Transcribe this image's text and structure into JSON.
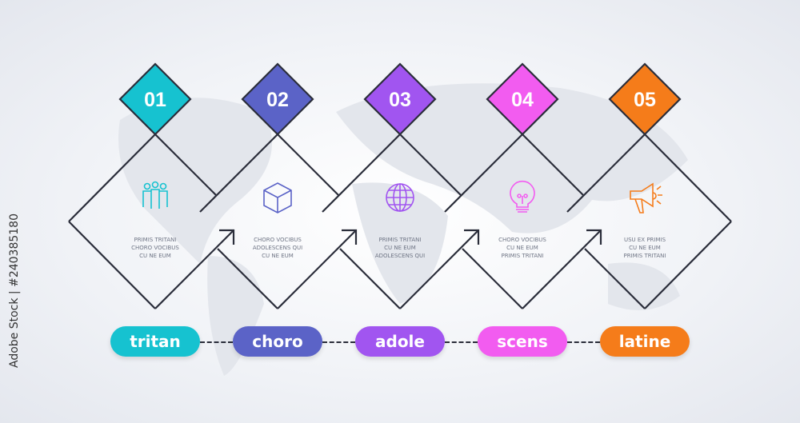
{
  "watermark": "Adobe Stock | #240385180",
  "outline_color": "#2a2d3a",
  "steps": [
    {
      "number": "01",
      "color": "#16c2d0",
      "icon": "people-group-icon",
      "lines": [
        "PRIMIS TRITANI",
        "CHORO VOCIBUS",
        "CU NE EUM"
      ],
      "label": "tritan"
    },
    {
      "number": "02",
      "color": "#5b63c7",
      "icon": "cube-icon",
      "lines": [
        "CHORO VOCIBUS",
        "ADOLESCENS QUI",
        "CU NE EUM"
      ],
      "label": "choro"
    },
    {
      "number": "03",
      "color": "#a155f0",
      "icon": "globe-icon",
      "lines": [
        "PRIMIS TRITANI",
        "CU NE EUM",
        "ADOLESCENS QUI"
      ],
      "label": "adole"
    },
    {
      "number": "04",
      "color": "#f25cf0",
      "icon": "lightbulb-icon",
      "lines": [
        "CHORO VOCIBUS",
        "CU NE EUM",
        "PRIMIS TRITANI"
      ],
      "label": "scens"
    },
    {
      "number": "05",
      "color": "#f57c1a",
      "icon": "megaphone-icon",
      "lines": [
        "USU EX PRIMIS",
        "CU NE EUM",
        "PRIMIS TRITANI"
      ],
      "label": "latine"
    }
  ]
}
